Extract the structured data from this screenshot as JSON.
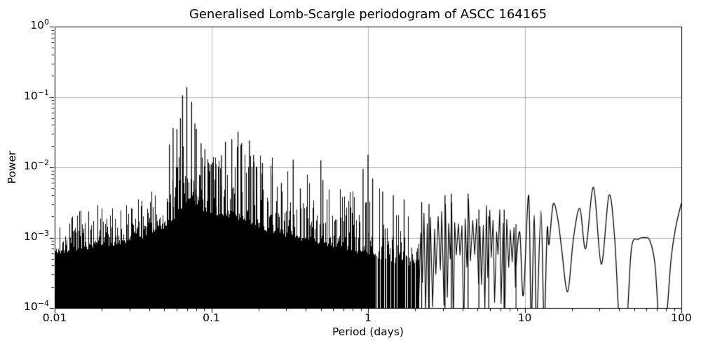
{
  "chart_data": {
    "type": "line",
    "title": "Generalised Lomb-Scargle periodogram of ASCC 164165",
    "xlabel": "Period (days)",
    "ylabel": "Power",
    "x_scale": "log",
    "y_scale": "log",
    "xlim": [
      0.01,
      100
    ],
    "ylim": [
      0.0001,
      1
    ],
    "grid": true,
    "legend": null,
    "line_color": "#000000",
    "grid_color": "#b0b0b0",
    "frame_color": "#000000",
    "background_color": "#ffffff",
    "x_ticks": [
      {
        "value": 0.01,
        "label": "0.01"
      },
      {
        "value": 0.1,
        "label": "0.1"
      },
      {
        "value": 1,
        "label": "1"
      },
      {
        "value": 10,
        "label": "10"
      },
      {
        "value": 100,
        "label": "100"
      }
    ],
    "y_ticks": [
      {
        "value": 1,
        "exponent": 0
      },
      {
        "value": 0.1,
        "exponent": -1
      },
      {
        "value": 0.01,
        "exponent": -2
      },
      {
        "value": 0.001,
        "exponent": -3
      },
      {
        "value": 0.0001,
        "exponent": -4
      }
    ],
    "main_peak": {
      "period_days": 0.0697,
      "power": 0.138
    },
    "peaks": [
      [
        0.054,
        0.021
      ],
      [
        0.057,
        0.036
      ],
      [
        0.0603,
        0.035
      ],
      [
        0.0635,
        0.05
      ],
      [
        0.0655,
        0.105
      ],
      [
        0.0697,
        0.138
      ],
      [
        0.0748,
        0.085
      ],
      [
        0.0785,
        0.042
      ],
      [
        0.0802,
        0.035
      ],
      [
        0.086,
        0.022
      ],
      [
        0.091,
        0.018
      ],
      [
        0.1,
        0.011
      ],
      [
        0.107,
        0.011
      ],
      [
        0.116,
        0.0148
      ],
      [
        0.123,
        0.023
      ],
      [
        0.135,
        0.025
      ],
      [
        0.148,
        0.032
      ],
      [
        0.156,
        0.022
      ],
      [
        0.175,
        0.024
      ],
      [
        0.186,
        0.015
      ],
      [
        0.212,
        0.0115
      ],
      [
        0.245,
        0.0078
      ],
      [
        0.28,
        0.006
      ],
      [
        0.333,
        0.0129
      ],
      [
        0.37,
        0.005
      ],
      [
        0.5,
        0.0126
      ],
      [
        0.515,
        0.0066
      ],
      [
        0.93,
        0.0095
      ],
      [
        1.0,
        0.0151
      ],
      [
        1.07,
        0.0069
      ],
      [
        1.24,
        0.0045
      ],
      [
        1.45,
        0.004
      ],
      [
        1.7,
        0.0035
      ],
      [
        2.2,
        0.0032
      ],
      [
        2.45,
        0.003
      ],
      [
        3.1,
        0.004
      ],
      [
        3.4,
        0.0042
      ],
      [
        4.35,
        0.0042
      ],
      [
        5.1,
        0.0025
      ],
      [
        5.9,
        0.002
      ],
      [
        7.4,
        0.0025
      ]
    ],
    "noise_floor_log10": -4,
    "dense_region": {
      "seed": 7,
      "t_start": 0.01,
      "t_end": 2.1,
      "shape_pow": 2.6,
      "gap_start_logt": -0.05,
      "gap_slope": 0.9,
      "gap_max": 0.5,
      "env_base": [
        [
          -2.0,
          -3.3
        ],
        [
          -1.8,
          -3.25
        ],
        [
          -1.6,
          -3.2
        ],
        [
          -1.4,
          -3.08
        ],
        [
          -1.28,
          -2.95
        ],
        [
          -1.2,
          -2.78
        ],
        [
          -1.15,
          -2.6
        ],
        [
          -1.1,
          -2.68
        ],
        [
          -1.0,
          -2.8
        ],
        [
          -0.9,
          -2.85
        ],
        [
          -0.8,
          -2.95
        ],
        [
          -0.7,
          -3.05
        ],
        [
          -0.6,
          -3.1
        ],
        [
          -0.5,
          -3.15
        ],
        [
          -0.4,
          -3.2
        ],
        [
          -0.3,
          -3.25
        ],
        [
          -0.2,
          -3.3
        ],
        [
          -0.1,
          -3.35
        ],
        [
          0.0,
          -3.4
        ],
        [
          0.15,
          -3.5
        ],
        [
          0.33,
          -3.55
        ]
      ],
      "env_hi": [
        [
          -2.0,
          -2.9
        ],
        [
          -1.85,
          -2.65
        ],
        [
          -1.7,
          -2.55
        ],
        [
          -1.55,
          -2.45
        ],
        [
          -1.4,
          -2.38
        ],
        [
          -1.3,
          -2.2
        ],
        [
          -1.24,
          -2.0
        ],
        [
          -1.19,
          -1.7
        ],
        [
          -1.165,
          -1.5
        ],
        [
          -1.12,
          -1.6
        ],
        [
          -1.07,
          -1.8
        ],
        [
          -1.0,
          -1.85
        ],
        [
          -0.93,
          -1.72
        ],
        [
          -0.85,
          -1.58
        ],
        [
          -0.78,
          -1.68
        ],
        [
          -0.7,
          -1.8
        ],
        [
          -0.62,
          -1.9
        ],
        [
          -0.53,
          -1.93
        ],
        [
          -0.45,
          -2.0
        ],
        [
          -0.38,
          -2.08
        ],
        [
          -0.3,
          -1.98
        ],
        [
          -0.22,
          -2.18
        ],
        [
          -0.15,
          -2.28
        ],
        [
          -0.08,
          -2.35
        ],
        [
          -0.02,
          -2.25
        ],
        [
          0.02,
          -2.2
        ],
        [
          0.08,
          -2.3
        ],
        [
          0.15,
          -2.38
        ],
        [
          0.25,
          -2.45
        ],
        [
          0.33,
          -2.52
        ]
      ]
    },
    "zigzag_region": {
      "t_start": 2.1,
      "t_end": 8.8,
      "low_base": -3.2,
      "low_spread": 1.2,
      "env_top": [
        [
          0.33,
          -2.55
        ],
        [
          0.45,
          -2.45
        ],
        [
          0.55,
          -2.4
        ],
        [
          0.65,
          -2.42
        ],
        [
          0.72,
          -2.55
        ],
        [
          0.8,
          -2.48
        ],
        [
          0.88,
          -2.6
        ],
        [
          0.95,
          -2.7
        ]
      ]
    },
    "smooth_points": [
      [
        8.8,
        0.0004
      ],
      [
        9.3,
        0.0012
      ],
      [
        9.8,
        0.00015
      ],
      [
        10.6,
        0.004
      ],
      [
        11.0,
        6e-05
      ],
      [
        11.5,
        0.0021
      ],
      [
        11.9,
        6e-05
      ],
      [
        12.7,
        0.0024
      ],
      [
        13.3,
        6e-05
      ],
      [
        13.9,
        0.0013
      ],
      [
        14.3,
        0.0008
      ],
      [
        15.2,
        0.003
      ],
      [
        16.3,
        0.0018
      ],
      [
        17.2,
        0.0007
      ],
      [
        18.8,
        0.00017
      ],
      [
        20.5,
        0.001
      ],
      [
        22.5,
        0.0026
      ],
      [
        24.5,
        0.0007
      ],
      [
        27.5,
        0.0052
      ],
      [
        30.8,
        0.00042
      ],
      [
        34.5,
        0.004
      ],
      [
        37.5,
        0.001
      ],
      [
        40.5,
        5e-05
      ],
      [
        44.5,
        5e-05
      ],
      [
        48,
        0.0007
      ],
      [
        53,
        0.00095
      ],
      [
        58,
        0.001
      ],
      [
        63,
        0.0009
      ],
      [
        68,
        0.0004
      ],
      [
        72.5,
        5e-05
      ],
      [
        79,
        5e-05
      ],
      [
        86,
        0.0005
      ],
      [
        92,
        0.0014
      ],
      [
        100,
        0.0031
      ]
    ]
  }
}
